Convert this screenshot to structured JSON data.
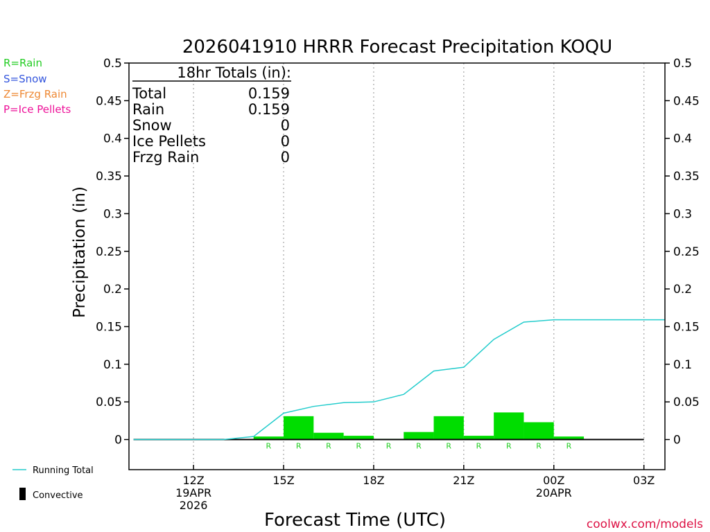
{
  "title": "2026041910 HRRR Forecast Precipitation KOQU",
  "ptype_legend": [
    {
      "label": "R=Rain",
      "color": "#22cc22"
    },
    {
      "label": "S=Snow",
      "color": "#3355dd"
    },
    {
      "label": "Z=Frzg Rain",
      "color": "#ee8833"
    },
    {
      "label": "P=Ice Pellets",
      "color": "#ee1199"
    }
  ],
  "totals": {
    "header": "18hr Totals (in):",
    "rows": [
      {
        "label": "Total",
        "value": "0.159"
      },
      {
        "label": "Rain",
        "value": "0.159"
      },
      {
        "label": "Snow",
        "value": "0"
      },
      {
        "label": "Ice Pellets",
        "value": "0"
      },
      {
        "label": "Frzg Rain",
        "value": "0"
      }
    ]
  },
  "series_legend": {
    "running_total": "Running Total",
    "convective": "Convective"
  },
  "credit": "coolwx.com/models",
  "colors": {
    "bar": "#00dd00",
    "running_total": "#22cccc",
    "ptype_rain": "#22cc22",
    "grid": "#aaaaaa",
    "credit": "#dd1144"
  },
  "chart_data": {
    "type": "bar",
    "title": "2026041910 HRRR Forecast Precipitation KOQU",
    "xlabel": "Forecast Time (UTC)",
    "ylabel": "Precipitation (in)",
    "ylim": [
      -0.04,
      0.5
    ],
    "xlim": [
      9.85,
      27.7
    ],
    "yticks": [
      0,
      0.05,
      0.1,
      0.15,
      0.2,
      0.25,
      0.3,
      0.35,
      0.4,
      0.45,
      0.5
    ],
    "ytick_labels": [
      "0",
      "0.05",
      "0.1",
      "0.15",
      "0.2",
      "0.25",
      "0.3",
      "0.35",
      "0.4",
      "0.45",
      "0.5"
    ],
    "xticks": [
      {
        "hour": 12,
        "lines": [
          "12Z",
          "19APR",
          "2026"
        ]
      },
      {
        "hour": 15,
        "lines": [
          "15Z"
        ]
      },
      {
        "hour": 18,
        "lines": [
          "18Z"
        ]
      },
      {
        "hour": 21,
        "lines": [
          "21Z"
        ]
      },
      {
        "hour": 24,
        "lines": [
          "00Z",
          "20APR"
        ]
      },
      {
        "hour": 27,
        "lines": [
          "03Z"
        ]
      }
    ],
    "bars": {
      "start_hours": [
        10,
        11,
        12,
        13,
        14,
        15,
        16,
        17,
        18,
        19,
        20,
        21,
        22,
        23,
        24,
        25,
        26,
        27
      ],
      "values": [
        0,
        0,
        0,
        0,
        0.004,
        0.031,
        0.009,
        0.005,
        0.001,
        0.01,
        0.031,
        0.005,
        0.036,
        0.023,
        0.004,
        0,
        0,
        0
      ],
      "convective": [
        0,
        0,
        0,
        0,
        0,
        0,
        0,
        0,
        0,
        0,
        0,
        0,
        0,
        0,
        0,
        0,
        0,
        0
      ]
    },
    "ptype_markers": {
      "hours": [
        14.5,
        15.5,
        16.5,
        17.5,
        18.5,
        19.5,
        20.5,
        21.5,
        22.5,
        23.5,
        24.5
      ],
      "labels": [
        "R",
        "R",
        "R",
        "R",
        "R",
        "R",
        "R",
        "R",
        "R",
        "R",
        "R"
      ]
    },
    "running_total": {
      "x": [
        10,
        11,
        12,
        13,
        14,
        15,
        16,
        17,
        18,
        19,
        20,
        21,
        22,
        23,
        24,
        25,
        26,
        27,
        27.7
      ],
      "y": [
        0,
        0,
        0,
        0,
        0.004,
        0.035,
        0.044,
        0.049,
        0.05,
        0.06,
        0.091,
        0.096,
        0.133,
        0.156,
        0.159,
        0.159,
        0.159,
        0.159,
        0.159
      ]
    },
    "legend": [
      "Running Total",
      "Convective"
    ]
  }
}
